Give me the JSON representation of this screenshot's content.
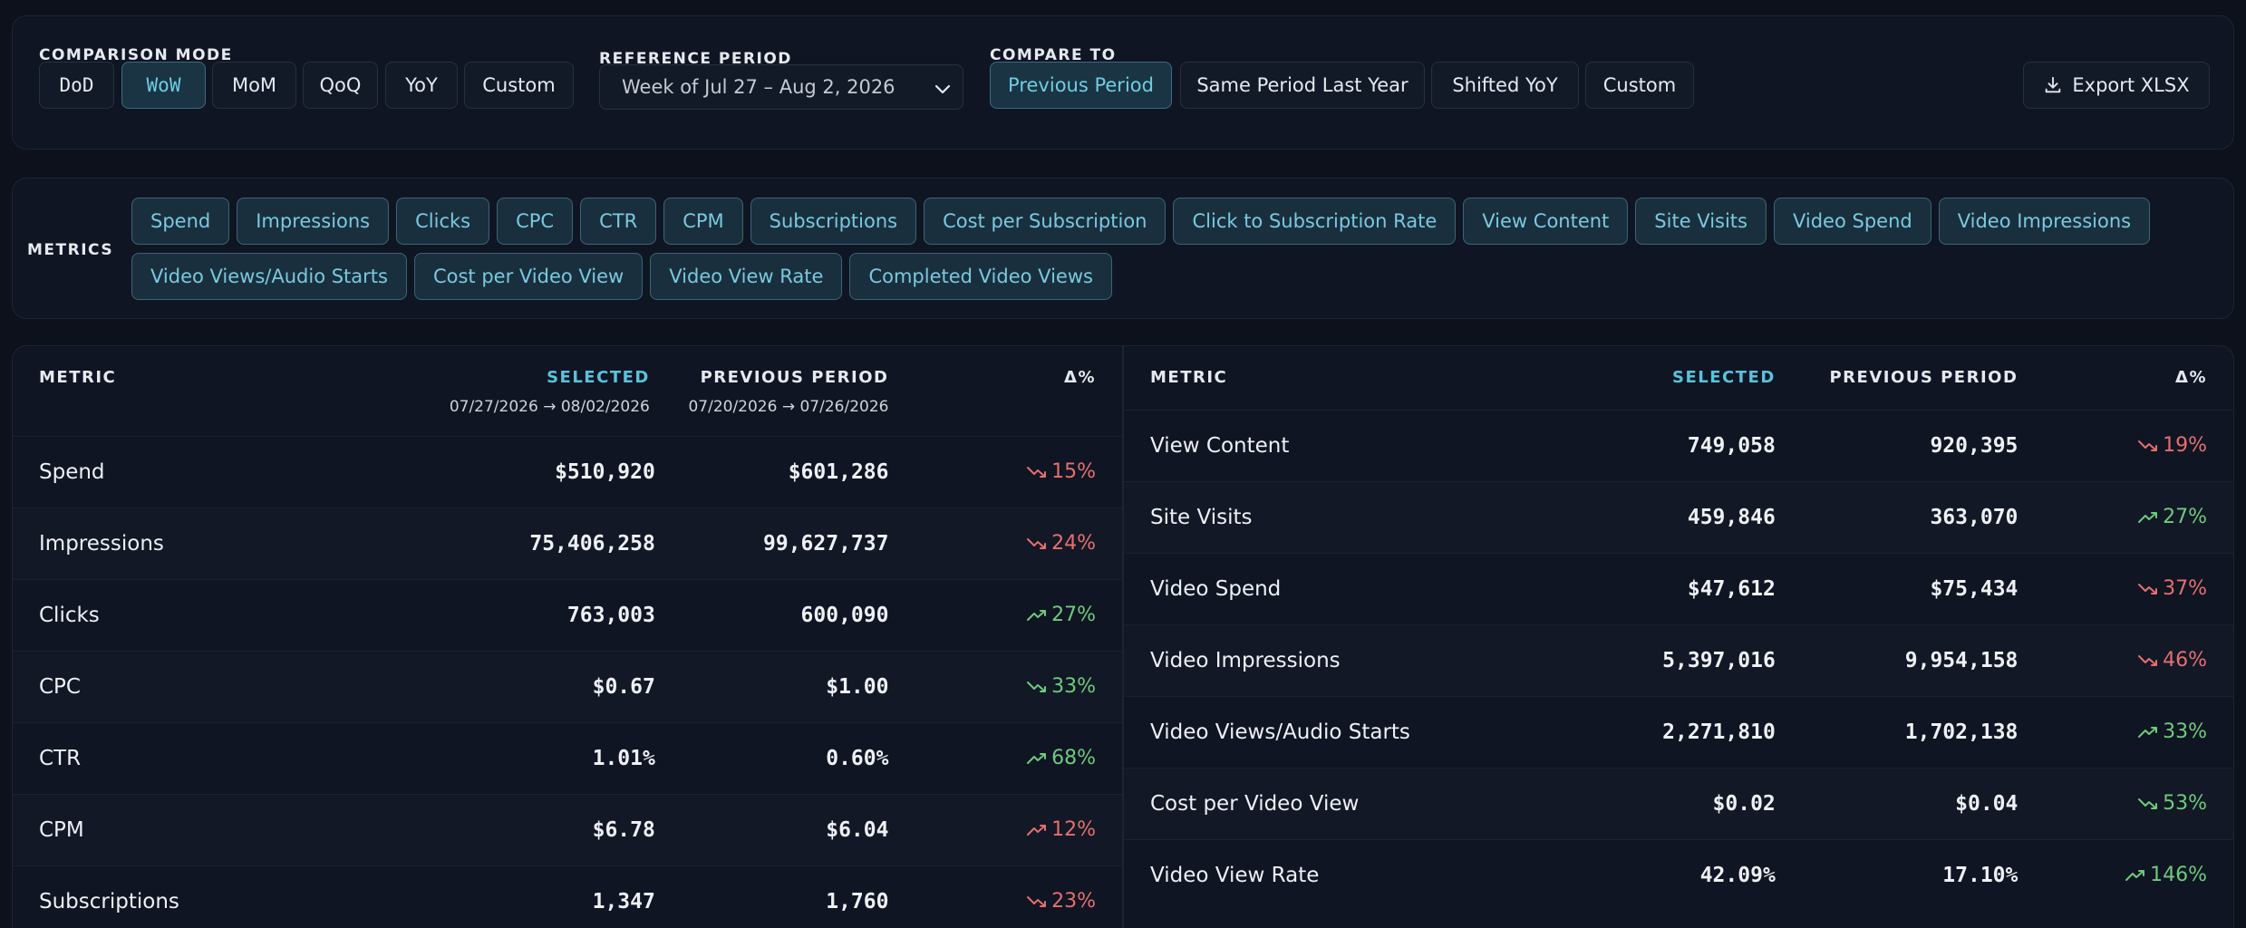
{
  "comparison_mode": {
    "label": "COMPARISON MODE",
    "options": [
      "DoD",
      "WoW",
      "MoM",
      "QoQ",
      "YoY",
      "Custom"
    ],
    "active": "WoW"
  },
  "reference_period": {
    "label": "REFERENCE PERIOD",
    "value": "Week of Jul 27 – Aug 2, 2026"
  },
  "compare_to": {
    "label": "COMPARE TO",
    "options": [
      "Previous Period",
      "Same Period Last Year",
      "Shifted YoY",
      "Custom"
    ],
    "active": "Previous Period"
  },
  "export": {
    "label": "Export XLSX"
  },
  "metrics": {
    "label": "METRICS",
    "row1": [
      "Spend",
      "Impressions",
      "Clicks",
      "CPC",
      "CTR",
      "CPM",
      "Subscriptions",
      "Cost per Subscription",
      "Click to Subscription Rate",
      "View Content",
      "Site Visits",
      "Video Spend",
      "Video Impressions"
    ],
    "row2": [
      "Video Views/Audio Starts",
      "Cost per Video View",
      "Video View Rate",
      "Completed Video Views"
    ]
  },
  "left_table": {
    "headers": {
      "metric": "METRIC",
      "selected": "SELECTED",
      "selected_range": "07/27/2026 → 08/02/2026",
      "previous": "PREVIOUS PERIOD",
      "previous_range": "07/20/2026 → 07/26/2026",
      "delta": "Δ%"
    },
    "rows": [
      {
        "metric": "Spend",
        "selected": "$510,920",
        "previous": "$601,286",
        "delta": "15%",
        "dir": "down",
        "tone": "bad"
      },
      {
        "metric": "Impressions",
        "selected": "75,406,258",
        "previous": "99,627,737",
        "delta": "24%",
        "dir": "down",
        "tone": "bad"
      },
      {
        "metric": "Clicks",
        "selected": "763,003",
        "previous": "600,090",
        "delta": "27%",
        "dir": "up",
        "tone": "good"
      },
      {
        "metric": "CPC",
        "selected": "$0.67",
        "previous": "$1.00",
        "delta": "33%",
        "dir": "down",
        "tone": "good"
      },
      {
        "metric": "CTR",
        "selected": "1.01%",
        "previous": "0.60%",
        "delta": "68%",
        "dir": "up",
        "tone": "good"
      },
      {
        "metric": "CPM",
        "selected": "$6.78",
        "previous": "$6.04",
        "delta": "12%",
        "dir": "up",
        "tone": "bad"
      },
      {
        "metric": "Subscriptions",
        "selected": "1,347",
        "previous": "1,760",
        "delta": "23%",
        "dir": "down",
        "tone": "bad"
      }
    ]
  },
  "right_table": {
    "headers": {
      "metric": "METRIC",
      "selected": "SELECTED",
      "previous": "PREVIOUS PERIOD",
      "delta": "Δ%"
    },
    "rows": [
      {
        "metric": "View Content",
        "selected": "749,058",
        "previous": "920,395",
        "delta": "19%",
        "dir": "down",
        "tone": "bad"
      },
      {
        "metric": "Site Visits",
        "selected": "459,846",
        "previous": "363,070",
        "delta": "27%",
        "dir": "up",
        "tone": "good"
      },
      {
        "metric": "Video Spend",
        "selected": "$47,612",
        "previous": "$75,434",
        "delta": "37%",
        "dir": "down",
        "tone": "bad"
      },
      {
        "metric": "Video Impressions",
        "selected": "5,397,016",
        "previous": "9,954,158",
        "delta": "46%",
        "dir": "down",
        "tone": "bad"
      },
      {
        "metric": "Video Views/Audio Starts",
        "selected": "2,271,810",
        "previous": "1,702,138",
        "delta": "33%",
        "dir": "up",
        "tone": "good"
      },
      {
        "metric": "Cost per Video View",
        "selected": "$0.02",
        "previous": "$0.04",
        "delta": "53%",
        "dir": "down",
        "tone": "good"
      },
      {
        "metric": "Video View Rate",
        "selected": "42.09%",
        "previous": "17.10%",
        "delta": "146%",
        "dir": "up",
        "tone": "good"
      }
    ]
  },
  "colors": {
    "accent": "#5ac2de",
    "good": "#6ecb7c",
    "bad": "#e76e6e",
    "background": "#0c111c"
  }
}
